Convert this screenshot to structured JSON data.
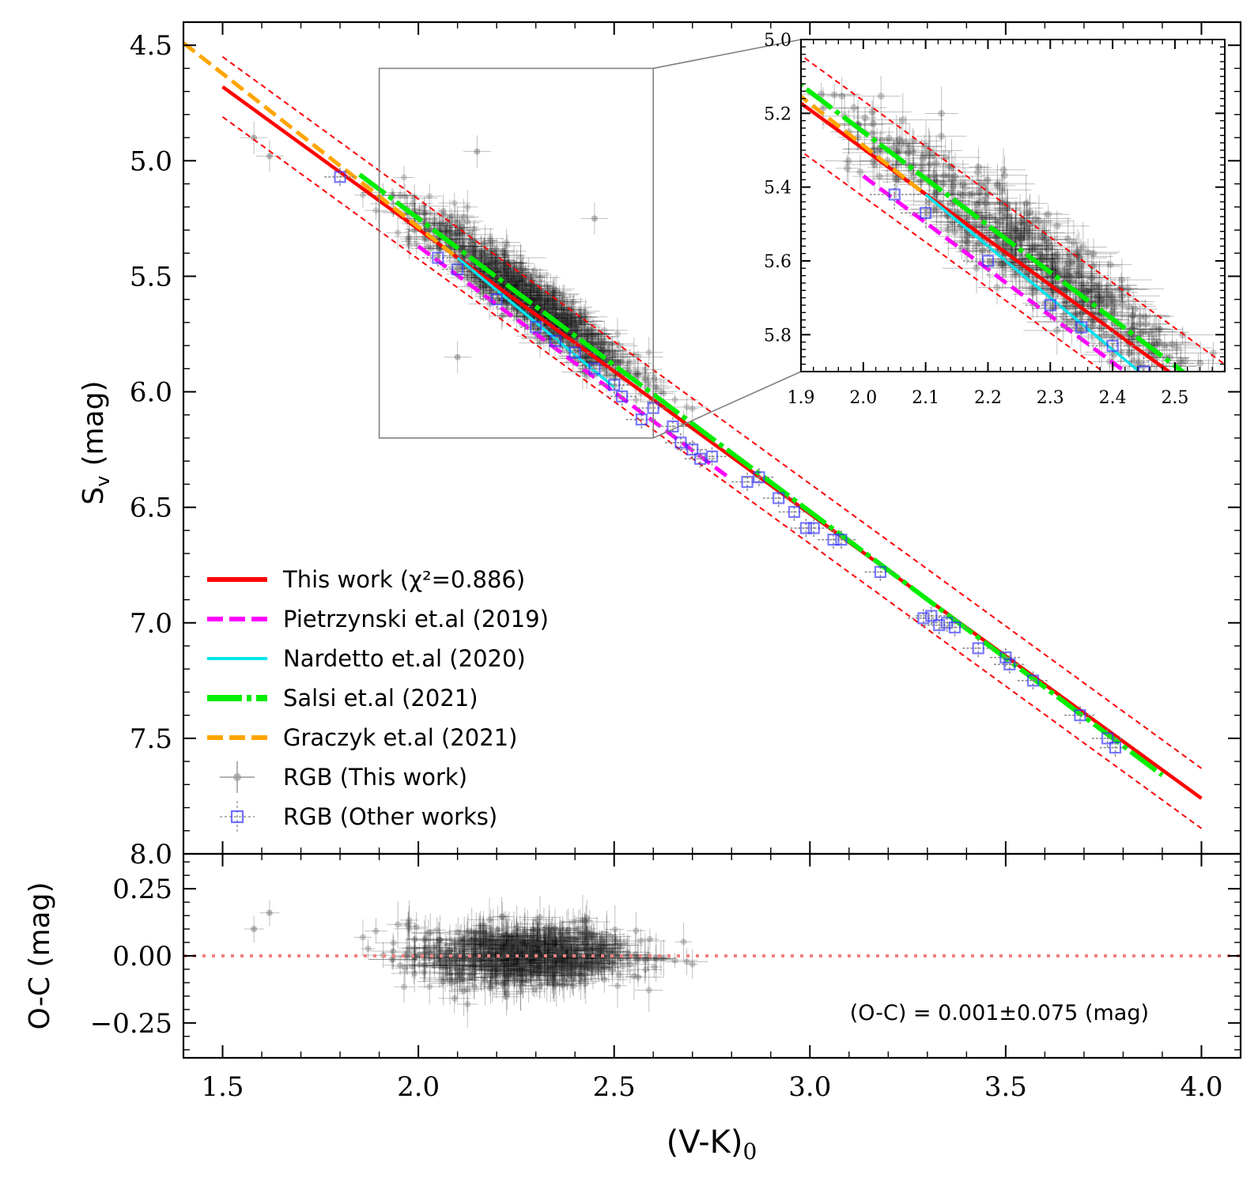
{
  "chart_data": [
    {
      "type": "scatter",
      "panel": "main",
      "ylabel_main": "S",
      "ylabel_sub": "v",
      "ylabel_unit": "(mag)",
      "xlim": [
        1.4,
        4.1
      ],
      "ylim": [
        4.4,
        8.0
      ],
      "y_inverted": true,
      "x_ticks": [
        "1.5",
        "2.0",
        "2.5",
        "3.0",
        "3.5",
        "4.0"
      ],
      "y_ticks": [
        "4.5",
        "5.0",
        "5.5",
        "6.0",
        "6.5",
        "7.0",
        "7.5",
        "8.0"
      ],
      "lines": [
        {
          "name": "This work",
          "legend": "This work (χ²=0.886)",
          "color": "#ff0000",
          "style": "solid",
          "x": [
            1.5,
            4.0
          ],
          "y": [
            4.68,
            7.76
          ]
        },
        {
          "name": "This work +1σ",
          "color": "#ff0000",
          "style": "thin-dashed",
          "x": [
            1.5,
            4.0
          ],
          "y": [
            4.55,
            7.63
          ]
        },
        {
          "name": "This work -1σ",
          "color": "#ff0000",
          "style": "thin-dashed",
          "x": [
            1.5,
            4.0
          ],
          "y": [
            4.81,
            7.89
          ]
        },
        {
          "name": "Pietrzynski",
          "legend": "Pietrzynski et.al (2019)",
          "color": "#ff00ff",
          "style": "dashed",
          "x": [
            2.0,
            2.8
          ],
          "y": [
            5.37,
            6.38
          ]
        },
        {
          "name": "Nardetto",
          "legend": "Nardetto et.al (2020)",
          "color": "#00e5ee",
          "style": "solid",
          "x": [
            2.1,
            2.5
          ],
          "y": [
            5.42,
            5.98
          ]
        },
        {
          "name": "Salsi",
          "legend": "Salsi et.al (2021)",
          "color": "#00ee00",
          "style": "dash-dot",
          "x": [
            1.85,
            3.9
          ],
          "y": [
            5.06,
            7.66
          ]
        },
        {
          "name": "Graczyk",
          "legend": "Graczyk et.al (2021)",
          "color": "#ffa500",
          "style": "dashed",
          "x": [
            1.4,
            2.1
          ],
          "y": [
            4.49,
            5.42
          ]
        }
      ],
      "scatter_legend": [
        {
          "label": "RGB (This work)",
          "marker": "circle",
          "color": "#808080"
        },
        {
          "label": "RGB (Other works)",
          "marker": "square",
          "color": "#3333ff"
        }
      ],
      "other_works_points": {
        "x": [
          1.8,
          2.05,
          2.1,
          2.2,
          2.3,
          2.35,
          2.4,
          2.45,
          2.5,
          2.52,
          2.57,
          2.6,
          2.65,
          2.67,
          2.7,
          2.72,
          2.75,
          2.84,
          2.87,
          2.92,
          2.96,
          2.99,
          3.01,
          3.06,
          3.08,
          3.18,
          3.29,
          3.31,
          3.33,
          3.35,
          3.37,
          3.43,
          3.5,
          3.51,
          3.57,
          3.69,
          3.76,
          3.78
        ],
        "y": [
          5.07,
          5.42,
          5.47,
          5.6,
          5.72,
          5.78,
          5.83,
          5.9,
          5.97,
          6.02,
          6.12,
          6.07,
          6.15,
          6.22,
          6.25,
          6.29,
          6.28,
          6.39,
          6.37,
          6.46,
          6.52,
          6.59,
          6.59,
          6.64,
          6.64,
          6.78,
          6.98,
          6.97,
          7.01,
          7.0,
          7.02,
          7.11,
          7.15,
          7.18,
          7.25,
          7.4,
          7.5,
          7.54
        ]
      },
      "this_work_outliers": {
        "x": [
          1.58,
          1.62,
          2.1,
          2.15,
          2.45
        ],
        "y": [
          4.9,
          4.98,
          5.85,
          4.96,
          5.25
        ]
      },
      "zoom_box": {
        "xlim": [
          1.9,
          2.6
        ],
        "ylim": [
          4.6,
          6.2
        ]
      }
    },
    {
      "type": "scatter",
      "panel": "inset",
      "xlim": [
        1.9,
        2.58
      ],
      "ylim": [
        5.0,
        5.9
      ],
      "y_inverted": true,
      "x_ticks": [
        "1.9",
        "2.0",
        "2.1",
        "2.2",
        "2.3",
        "2.4",
        "2.5"
      ],
      "y_ticks": [
        "5.0",
        "5.2",
        "5.4",
        "5.6",
        "5.8"
      ]
    },
    {
      "type": "scatter",
      "panel": "residuals",
      "ylabel": "O-C (mag)",
      "xlabel_main": "(V-K)",
      "xlabel_sub": "0",
      "xlim": [
        1.4,
        4.1
      ],
      "ylim": [
        -0.38,
        0.38
      ],
      "x_ticks": [
        "1.5",
        "2.0",
        "2.5",
        "3.0",
        "3.5",
        "4.0"
      ],
      "y_ticks": [
        "0.25",
        "0.00",
        "−0.25"
      ],
      "zero_line": {
        "y": 0.0,
        "color": "#f08080",
        "style": "dotted"
      },
      "annotation": "(O-C) = 0.001±0.075 (mag)",
      "outliers": {
        "x": [
          1.58,
          1.62
        ],
        "y": [
          0.1,
          0.16
        ]
      }
    }
  ]
}
